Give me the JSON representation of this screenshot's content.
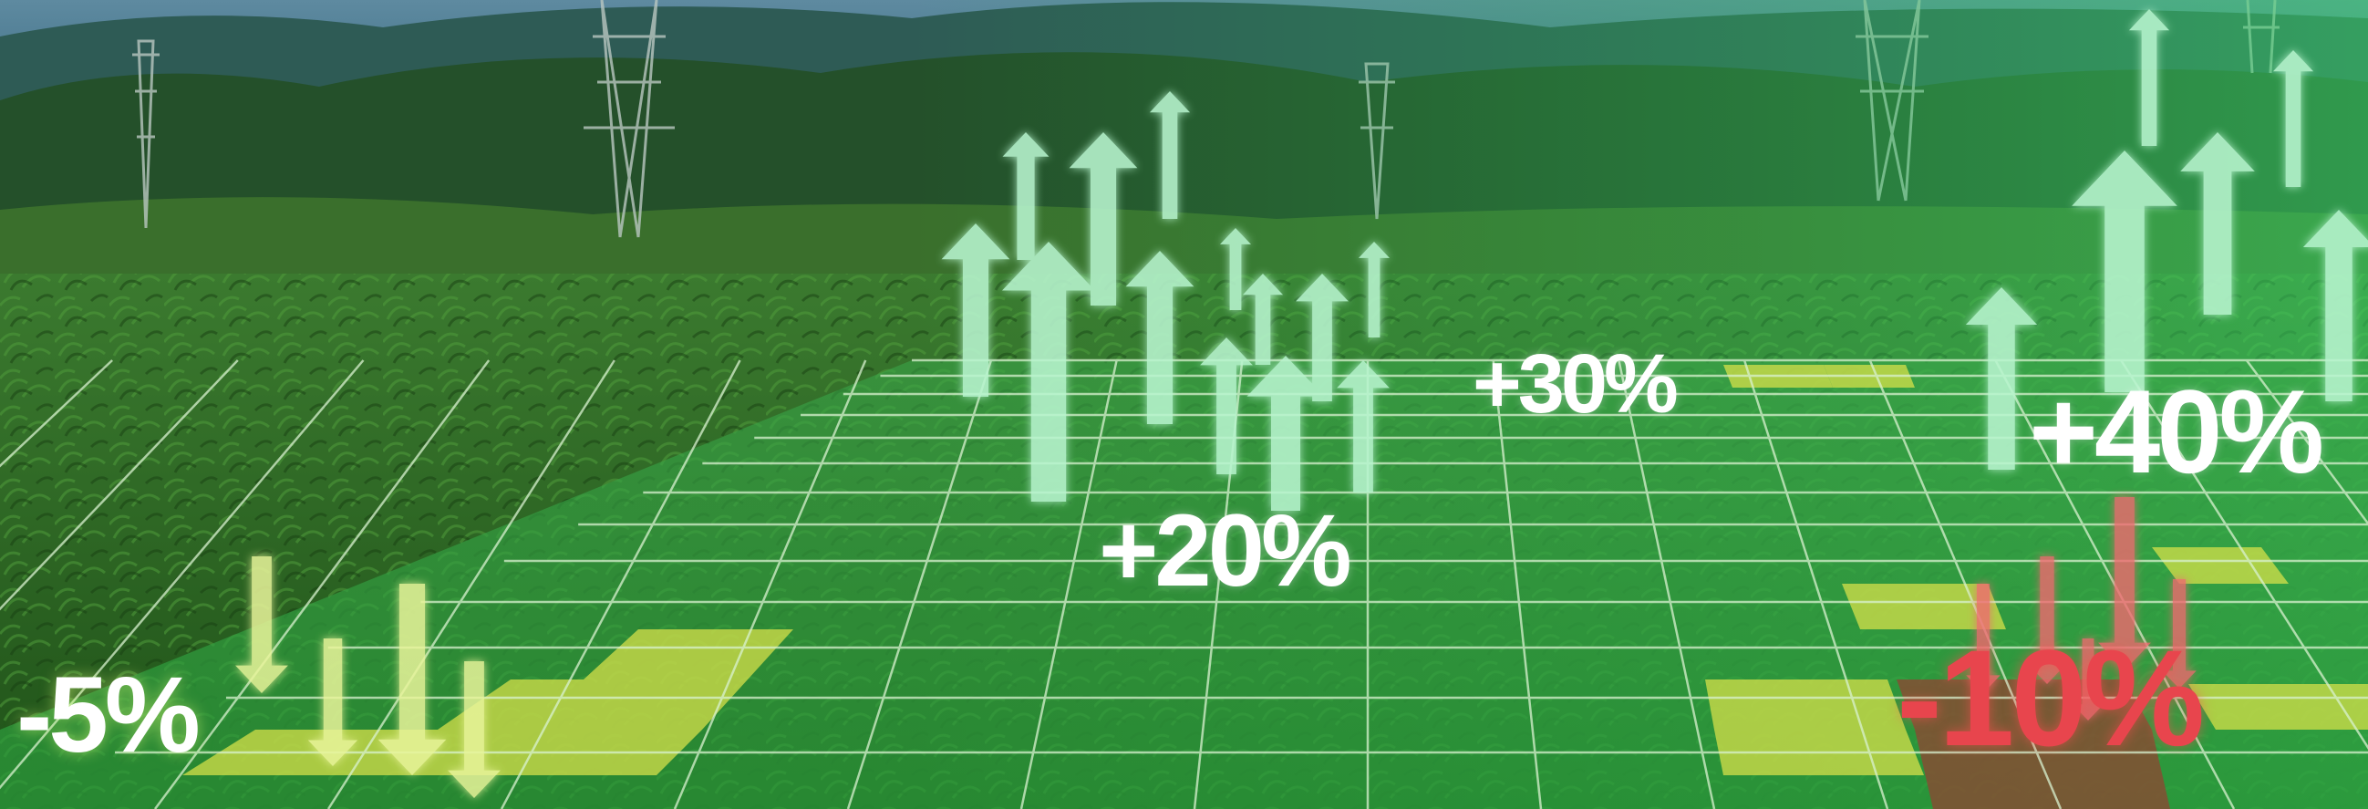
{
  "labels": {
    "minus_5": "-5%",
    "plus_20": "+20%",
    "plus_30": "+30%",
    "plus_40": "+40%",
    "minus_10": "-10%"
  },
  "colors": {
    "sky": "#3f6f86",
    "mountains": "#2e5b55",
    "crops": "#2f6a28",
    "grid_line": "#d9f2d0",
    "up_arrow": "#b8f5cf",
    "down_arrow_yellow": "#e9f59a",
    "down_arrow_red": "#f06b6f",
    "tile_yellow": "#d6e04a",
    "tile_red": "#8a4a33"
  }
}
